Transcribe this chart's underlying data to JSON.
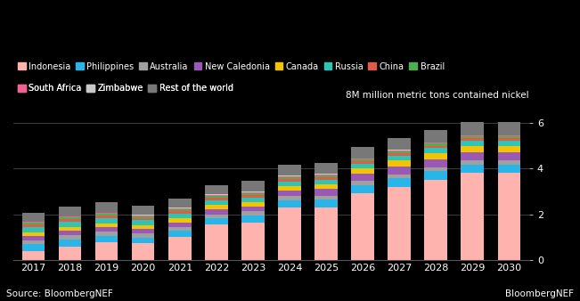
{
  "years": [
    2017,
    2018,
    2019,
    2020,
    2021,
    2022,
    2023,
    2024,
    2025,
    2026,
    2027,
    2028,
    2029,
    2030
  ],
  "countries": [
    "Indonesia",
    "Philippines",
    "Australia",
    "New Caledonia",
    "Canada",
    "Russia",
    "China",
    "Brazil",
    "South Africa",
    "Zimbabwe",
    "Rest of the world"
  ],
  "colors": [
    "#ffb3ae",
    "#29b5e8",
    "#a0a0a0",
    "#9b59b6",
    "#f5c400",
    "#2ec4b6",
    "#e05c4a",
    "#4caf50",
    "#f06292",
    "#c8c8c8",
    "#787878"
  ],
  "data": {
    "Indonesia": [
      0.4,
      0.6,
      0.78,
      0.72,
      1.0,
      1.55,
      1.65,
      2.3,
      2.3,
      2.9,
      3.2,
      3.5,
      3.8,
      3.8
    ],
    "Philippines": [
      0.28,
      0.3,
      0.28,
      0.26,
      0.28,
      0.28,
      0.3,
      0.32,
      0.35,
      0.38,
      0.38,
      0.38,
      0.38,
      0.38
    ],
    "Australia": [
      0.17,
      0.17,
      0.17,
      0.17,
      0.17,
      0.17,
      0.17,
      0.17,
      0.17,
      0.17,
      0.17,
      0.17,
      0.17,
      0.17
    ],
    "New Caledonia": [
      0.2,
      0.21,
      0.21,
      0.2,
      0.2,
      0.22,
      0.22,
      0.25,
      0.28,
      0.32,
      0.35,
      0.35,
      0.35,
      0.35
    ],
    "Canada": [
      0.17,
      0.17,
      0.17,
      0.17,
      0.17,
      0.18,
      0.18,
      0.18,
      0.2,
      0.22,
      0.25,
      0.28,
      0.3,
      0.3
    ],
    "Russia": [
      0.22,
      0.22,
      0.22,
      0.22,
      0.22,
      0.22,
      0.22,
      0.22,
      0.22,
      0.22,
      0.22,
      0.22,
      0.22,
      0.22
    ],
    "China": [
      0.1,
      0.1,
      0.1,
      0.1,
      0.1,
      0.1,
      0.1,
      0.1,
      0.1,
      0.1,
      0.1,
      0.1,
      0.1,
      0.1
    ],
    "Brazil": [
      0.08,
      0.08,
      0.08,
      0.08,
      0.08,
      0.08,
      0.08,
      0.08,
      0.08,
      0.08,
      0.08,
      0.08,
      0.08,
      0.08
    ],
    "South Africa": [
      0.04,
      0.04,
      0.04,
      0.04,
      0.04,
      0.04,
      0.04,
      0.04,
      0.04,
      0.04,
      0.04,
      0.04,
      0.04,
      0.04
    ],
    "Zimbabwe": [
      0.02,
      0.02,
      0.02,
      0.02,
      0.02,
      0.02,
      0.02,
      0.02,
      0.02,
      0.02,
      0.02,
      0.02,
      0.02,
      0.02
    ],
    "Rest of the world": [
      0.4,
      0.42,
      0.44,
      0.38,
      0.4,
      0.42,
      0.48,
      0.48,
      0.48,
      0.5,
      0.52,
      0.54,
      0.56,
      0.56
    ]
  },
  "ylim": [
    0,
    6.8
  ],
  "yticks": [
    0,
    2,
    4,
    6
  ],
  "ylabel": "8M million metric tons contained nickel",
  "background_color": "#000000",
  "text_color": "#ffffff",
  "source_text": "Source: BloombergNEF",
  "brand_text": "BloombergNEF",
  "bar_width": 0.62,
  "legend_row1": [
    "Indonesia",
    "Philippines",
    "Australia",
    "New Caledonia",
    "Canada",
    "Russia",
    "China",
    "Brazil"
  ],
  "legend_row2": [
    "South Africa",
    "Zimbabwe",
    "Rest of the world"
  ]
}
